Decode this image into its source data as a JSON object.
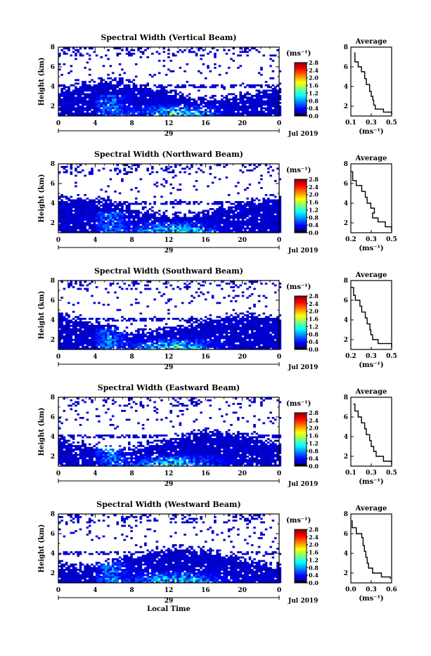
{
  "chart_data": [
    {
      "type": "heatmap",
      "title": "Spectral Width (Vertical Beam)",
      "ylabel": "Height (km)",
      "yticks": [
        "2",
        "4",
        "6",
        "8"
      ],
      "xticks": [
        "0",
        "4",
        "8",
        "12",
        "16",
        "20",
        "0"
      ],
      "day_label": "29",
      "date_label": "Jul 2019",
      "xlim": [
        0,
        24
      ],
      "ylim": [
        1,
        8
      ],
      "colorbar": {
        "unit": "(ms⁻¹)",
        "ticks": [
          "0.0",
          "0.4",
          "0.8",
          "1.2",
          "1.6",
          "2.0",
          "2.4",
          "2.8"
        ],
        "range": [
          0,
          2.8
        ]
      },
      "profile": {
        "title": "Average",
        "xlabel": "(ms⁻¹)",
        "xticks": [
          "0.1",
          "0.3",
          "0.5"
        ],
        "yticks": [
          "2",
          "4",
          "6",
          "8"
        ],
        "xlim": [
          0.05,
          0.55
        ],
        "points": [
          [
            0.09,
            7.4
          ],
          [
            0.1,
            6.5
          ],
          [
            0.14,
            6.0
          ],
          [
            0.18,
            5.5
          ],
          [
            0.22,
            4.8
          ],
          [
            0.24,
            4.2
          ],
          [
            0.28,
            3.5
          ],
          [
            0.3,
            3.0
          ],
          [
            0.32,
            2.6
          ],
          [
            0.33,
            2.1
          ],
          [
            0.35,
            1.7
          ],
          [
            0.45,
            1.4
          ],
          [
            0.55,
            1.2
          ]
        ]
      }
    },
    {
      "type": "heatmap",
      "title": "Spectral Width (Northward Beam)",
      "ylabel": "Height (km)",
      "yticks": [
        "2",
        "4",
        "6",
        "8"
      ],
      "xticks": [
        "0",
        "4",
        "8",
        "12",
        "16",
        "20",
        "0"
      ],
      "day_label": "29",
      "date_label": "Jul 2019",
      "xlim": [
        0,
        24
      ],
      "ylim": [
        1,
        8
      ],
      "colorbar": {
        "unit": "(ms⁻¹)",
        "ticks": [
          "0.0",
          "0.4",
          "0.8",
          "1.2",
          "1.6",
          "2.0",
          "2.4",
          "2.8"
        ],
        "range": [
          0,
          2.8
        ]
      },
      "profile": {
        "title": "Average",
        "xlabel": "(ms⁻¹)",
        "xticks": [
          "0.2",
          "0.3",
          "0.5"
        ],
        "yticks": [
          "2",
          "4",
          "6",
          "8"
        ],
        "xlim": [
          0.1,
          0.55
        ],
        "points": [
          [
            0.1,
            7.2
          ],
          [
            0.12,
            6.3
          ],
          [
            0.16,
            5.8
          ],
          [
            0.22,
            5.2
          ],
          [
            0.26,
            4.6
          ],
          [
            0.28,
            4.0
          ],
          [
            0.32,
            3.5
          ],
          [
            0.36,
            3.0
          ],
          [
            0.34,
            2.5
          ],
          [
            0.4,
            2.1
          ],
          [
            0.48,
            1.6
          ],
          [
            0.55,
            1.2
          ]
        ]
      }
    },
    {
      "type": "heatmap",
      "title": "Spectral Width (Southward Beam)",
      "ylabel": "Height (km)",
      "yticks": [
        "2",
        "4",
        "6",
        "8"
      ],
      "xticks": [
        "0",
        "4",
        "8",
        "12",
        "16",
        "20",
        "0"
      ],
      "day_label": "29",
      "date_label": "Jul 2019",
      "xlim": [
        0,
        24
      ],
      "ylim": [
        1,
        8
      ],
      "colorbar": {
        "unit": "(ms⁻¹)",
        "ticks": [
          "0.0",
          "0.4",
          "0.8",
          "1.2",
          "1.6",
          "2.0",
          "2.4",
          "2.8"
        ],
        "range": [
          0,
          2.8
        ]
      },
      "profile": {
        "title": "Average",
        "xlabel": "(ms⁻¹)",
        "xticks": [
          "0.2",
          "0.3",
          "0.5"
        ],
        "yticks": [
          "2",
          "4",
          "6",
          "8"
        ],
        "xlim": [
          0.1,
          0.55
        ],
        "points": [
          [
            0.1,
            7.3
          ],
          [
            0.13,
            6.5
          ],
          [
            0.15,
            6.0
          ],
          [
            0.2,
            5.4
          ],
          [
            0.22,
            4.8
          ],
          [
            0.26,
            4.2
          ],
          [
            0.28,
            3.6
          ],
          [
            0.31,
            3.0
          ],
          [
            0.32,
            2.5
          ],
          [
            0.34,
            2.0
          ],
          [
            0.4,
            1.6
          ],
          [
            0.55,
            1.2
          ]
        ]
      }
    },
    {
      "type": "heatmap",
      "title": "Spectral Width (Eastward Beam)",
      "ylabel": "Height (km)",
      "yticks": [
        "2",
        "4",
        "6",
        "8"
      ],
      "xticks": [
        "0",
        "4",
        "8",
        "12",
        "16",
        "20",
        "0"
      ],
      "day_label": "29",
      "date_label": "Jul 2019",
      "xlim": [
        0,
        24
      ],
      "ylim": [
        1,
        8
      ],
      "colorbar": {
        "unit": "(ms⁻¹)",
        "ticks": [
          "0.0",
          "0.4",
          "0.8",
          "1.2",
          "1.6",
          "2.0",
          "2.4",
          "2.8"
        ],
        "range": [
          0,
          2.8
        ]
      },
      "profile": {
        "title": "Average",
        "xlabel": "(ms⁻¹)",
        "xticks": [
          "0.1",
          "0.3",
          "0.5"
        ],
        "yticks": [
          "2",
          "4",
          "6",
          "8"
        ],
        "xlim": [
          0.05,
          0.55
        ],
        "points": [
          [
            0.08,
            7.3
          ],
          [
            0.1,
            6.6
          ],
          [
            0.14,
            6.0
          ],
          [
            0.18,
            5.4
          ],
          [
            0.22,
            4.8
          ],
          [
            0.24,
            4.2
          ],
          [
            0.28,
            3.6
          ],
          [
            0.3,
            3.0
          ],
          [
            0.33,
            2.5
          ],
          [
            0.36,
            2.0
          ],
          [
            0.45,
            1.5
          ],
          [
            0.55,
            1.2
          ]
        ]
      }
    },
    {
      "type": "heatmap",
      "title": "Spectral Width (Westward Beam)",
      "ylabel": "Height (km)",
      "yticks": [
        "2",
        "4",
        "6",
        "8"
      ],
      "xticks": [
        "0",
        "4",
        "8",
        "12",
        "16",
        "20",
        "0"
      ],
      "day_label": "29",
      "date_label": "Jul 2019",
      "xlabel": "Local Time",
      "xlim": [
        0,
        24
      ],
      "ylim": [
        1,
        8
      ],
      "colorbar": {
        "unit": "(ms⁻¹)",
        "ticks": [
          "0.0",
          "0.4",
          "0.8",
          "1.2",
          "1.6",
          "2.0",
          "2.4",
          "2.8"
        ],
        "range": [
          0,
          2.8
        ]
      },
      "profile": {
        "title": "Average",
        "xlabel": "(ms⁻¹)",
        "xticks": [
          "0.0",
          "0.3",
          "0.6"
        ],
        "yticks": [
          "2",
          "4",
          "6",
          "8"
        ],
        "xlim": [
          0.0,
          0.6
        ],
        "points": [
          [
            0.01,
            7.3
          ],
          [
            0.02,
            6.6
          ],
          [
            0.08,
            6.0
          ],
          [
            0.16,
            5.6
          ],
          [
            0.18,
            4.8
          ],
          [
            0.2,
            4.2
          ],
          [
            0.22,
            3.6
          ],
          [
            0.24,
            3.0
          ],
          [
            0.26,
            2.5
          ],
          [
            0.32,
            2.0
          ],
          [
            0.45,
            1.6
          ],
          [
            0.58,
            1.4
          ]
        ]
      }
    }
  ]
}
